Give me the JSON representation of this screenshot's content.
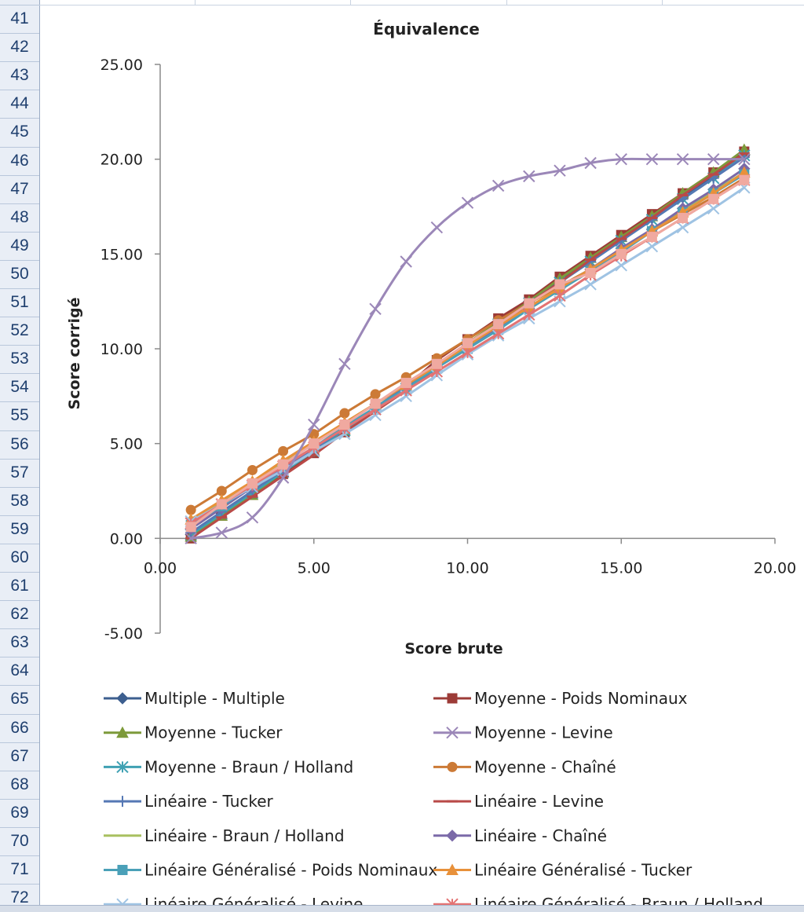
{
  "spreadsheet": {
    "rows": [
      "41",
      "42",
      "43",
      "44",
      "45",
      "46",
      "47",
      "48",
      "49",
      "50",
      "51",
      "52",
      "53",
      "54",
      "55",
      "56",
      "57",
      "58",
      "59",
      "60",
      "61",
      "62",
      "63",
      "64",
      "65",
      "66",
      "67",
      "68",
      "69",
      "70",
      "71",
      "72"
    ]
  },
  "chart_data": {
    "type": "line",
    "title": "Équivalence",
    "xlabel": "Score brute",
    "ylabel": "Score corrigé",
    "xlim": [
      0,
      20
    ],
    "ylim": [
      -5,
      25
    ],
    "x_ticks": [
      "0.00",
      "5.00",
      "10.00",
      "15.00",
      "20.00"
    ],
    "y_ticks": [
      "25.00",
      "20.00",
      "15.00",
      "10.00",
      "5.00",
      "0.00",
      "-5.00"
    ],
    "grid": false,
    "legend_position": "bottom",
    "x": [
      1,
      2,
      3,
      4,
      5,
      6,
      7,
      8,
      9,
      10,
      11,
      12,
      13,
      14,
      15,
      16,
      17,
      18,
      19
    ],
    "series": [
      {
        "name": "Multiple - Multiple",
        "color": "#3d5f8f",
        "marker": "diamond",
        "values": [
          0.2,
          1.3,
          2.4,
          3.5,
          4.6,
          5.7,
          6.8,
          7.9,
          9.0,
          10.2,
          11.3,
          12.5,
          13.6,
          14.7,
          15.8,
          16.9,
          18.0,
          19.1,
          20.2
        ]
      },
      {
        "name": "Moyenne - Poids Nominaux",
        "color": "#9c3b37",
        "marker": "square",
        "values": [
          0.0,
          1.2,
          2.3,
          3.4,
          4.5,
          5.6,
          6.8,
          8.0,
          9.4,
          10.5,
          11.6,
          12.6,
          13.8,
          14.9,
          16.0,
          17.1,
          18.2,
          19.3,
          20.4
        ]
      },
      {
        "name": "Moyenne - Tucker",
        "color": "#7d9a3a",
        "marker": "triangle",
        "values": [
          0.1,
          1.2,
          2.3,
          3.5,
          4.6,
          5.7,
          6.9,
          8.0,
          9.1,
          10.3,
          11.4,
          12.5,
          13.7,
          14.8,
          15.9,
          17.0,
          18.2,
          19.3,
          20.5
        ]
      },
      {
        "name": "Moyenne - Levine",
        "color": "#9b87b8",
        "marker": "x",
        "values": [
          0.0,
          0.3,
          1.1,
          3.2,
          6.0,
          9.2,
          12.1,
          14.6,
          16.4,
          17.7,
          18.6,
          19.1,
          19.4,
          19.8,
          20.0,
          20.0,
          20.0,
          20.0,
          20.0
        ]
      },
      {
        "name": "Moyenne - Braun / Holland",
        "color": "#3fa1b3",
        "marker": "asterisk",
        "values": [
          0.2,
          1.3,
          2.4,
          3.5,
          4.6,
          5.7,
          6.8,
          7.9,
          9.0,
          10.2,
          11.3,
          12.4,
          13.5,
          14.6,
          15.7,
          16.8,
          17.9,
          19.0,
          20.2
        ]
      },
      {
        "name": "Moyenne - Chaîné",
        "color": "#cc7a36",
        "marker": "circle",
        "values": [
          1.5,
          2.5,
          3.6,
          4.6,
          5.5,
          6.6,
          7.6,
          8.5,
          9.5,
          10.5,
          11.5,
          12.4,
          13.3,
          14.2,
          15.2,
          16.2,
          17.1,
          18.0,
          19.0
        ]
      },
      {
        "name": "Linéaire - Tucker",
        "color": "#5578b4",
        "marker": "plus",
        "values": [
          0.3,
          1.4,
          2.5,
          3.6,
          4.7,
          5.8,
          6.9,
          8.0,
          9.1,
          10.2,
          11.3,
          12.4,
          13.5,
          14.6,
          15.7,
          16.8,
          17.9,
          19.0,
          20.1
        ]
      },
      {
        "name": "Linéaire - Levine",
        "color": "#b94a48",
        "marker": "dash",
        "values": [
          0.0,
          1.1,
          2.2,
          3.3,
          4.4,
          5.6,
          6.7,
          7.8,
          9.0,
          10.1,
          11.2,
          12.4,
          13.5,
          14.7,
          15.8,
          16.9,
          18.1,
          19.2,
          20.3
        ]
      },
      {
        "name": "Linéaire - Braun / Holland",
        "color": "#a8c060",
        "marker": "none",
        "values": [
          0.9,
          1.9,
          3.0,
          4.0,
          5.0,
          6.1,
          7.1,
          8.1,
          9.1,
          10.1,
          11.2,
          12.2,
          13.2,
          14.2,
          15.2,
          16.3,
          17.3,
          18.3,
          19.3
        ]
      },
      {
        "name": "Linéaire - Chaîné",
        "color": "#7b6aa8",
        "marker": "diamond",
        "values": [
          0.5,
          1.6,
          2.7,
          3.7,
          4.8,
          5.8,
          6.9,
          7.9,
          9.0,
          10.0,
          11.1,
          12.1,
          13.2,
          14.2,
          15.3,
          16.3,
          17.4,
          18.4,
          19.5
        ]
      },
      {
        "name": "Linéaire Généralisé - Poids Nominaux",
        "color": "#4aa0b8",
        "marker": "square",
        "values": [
          0.7,
          1.7,
          2.8,
          3.8,
          4.8,
          5.9,
          6.9,
          7.9,
          9.0,
          10.0,
          11.0,
          12.1,
          13.1,
          14.1,
          15.1,
          16.2,
          17.2,
          18.2,
          19.2
        ]
      },
      {
        "name": "Linéaire Généralisé - Tucker",
        "color": "#e8913a",
        "marker": "triangle",
        "values": [
          1.0,
          2.0,
          3.0,
          4.1,
          5.1,
          6.1,
          7.1,
          8.1,
          9.1,
          10.2,
          11.2,
          12.2,
          13.2,
          14.2,
          15.2,
          16.2,
          17.2,
          18.2,
          19.3
        ]
      },
      {
        "name": "Linéaire Généralisé - Levine",
        "color": "#9fc3e3",
        "marker": "x",
        "values": [
          0.9,
          1.8,
          2.7,
          3.6,
          4.6,
          5.5,
          6.5,
          7.5,
          8.6,
          9.7,
          10.7,
          11.6,
          12.5,
          13.4,
          14.4,
          15.4,
          16.4,
          17.4,
          18.5
        ]
      },
      {
        "name": "Linéaire Généralisé - Braun / Holland",
        "color": "#e37373",
        "marker": "asterisk",
        "values": [
          0.8,
          1.8,
          2.8,
          3.8,
          4.8,
          5.8,
          6.8,
          7.8,
          8.8,
          9.8,
          10.8,
          11.8,
          12.8,
          13.9,
          14.9,
          15.9,
          16.9,
          17.9,
          18.9
        ]
      },
      {
        "name": "",
        "color": "#f0a9a0",
        "marker": "square",
        "values": [
          0.6,
          1.8,
          2.9,
          3.9,
          5.0,
          6.0,
          7.1,
          8.2,
          9.2,
          10.3,
          11.3,
          12.4,
          13.4,
          14.0,
          15.0,
          15.9,
          16.9,
          17.9,
          18.9
        ]
      }
    ]
  }
}
